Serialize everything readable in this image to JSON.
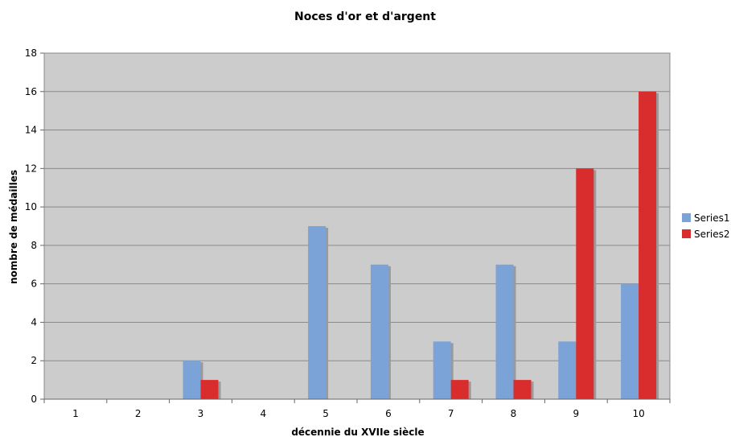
{
  "chart_data": {
    "type": "bar",
    "title": "Noces d'or et d'argent",
    "xlabel": "décennie du XVIIe siècle",
    "ylabel": "nombre de médailles",
    "categories": [
      "1",
      "2",
      "3",
      "4",
      "5",
      "6",
      "7",
      "8",
      "9",
      "10"
    ],
    "series": [
      {
        "name": "Series1",
        "color": "#7ba3d8",
        "values": [
          0,
          0,
          2,
          0,
          9,
          7,
          3,
          7,
          3,
          6
        ]
      },
      {
        "name": "Series2",
        "color": "#d92d2d",
        "values": [
          0,
          0,
          1,
          0,
          0,
          0,
          1,
          1,
          12,
          16
        ]
      }
    ],
    "ylim": [
      0,
      18
    ],
    "yticks": [
      "0",
      "2",
      "4",
      "6",
      "8",
      "10",
      "12",
      "14",
      "16",
      "18"
    ],
    "grid": true,
    "legend_position": "right",
    "plot_background": "#cccccc"
  }
}
